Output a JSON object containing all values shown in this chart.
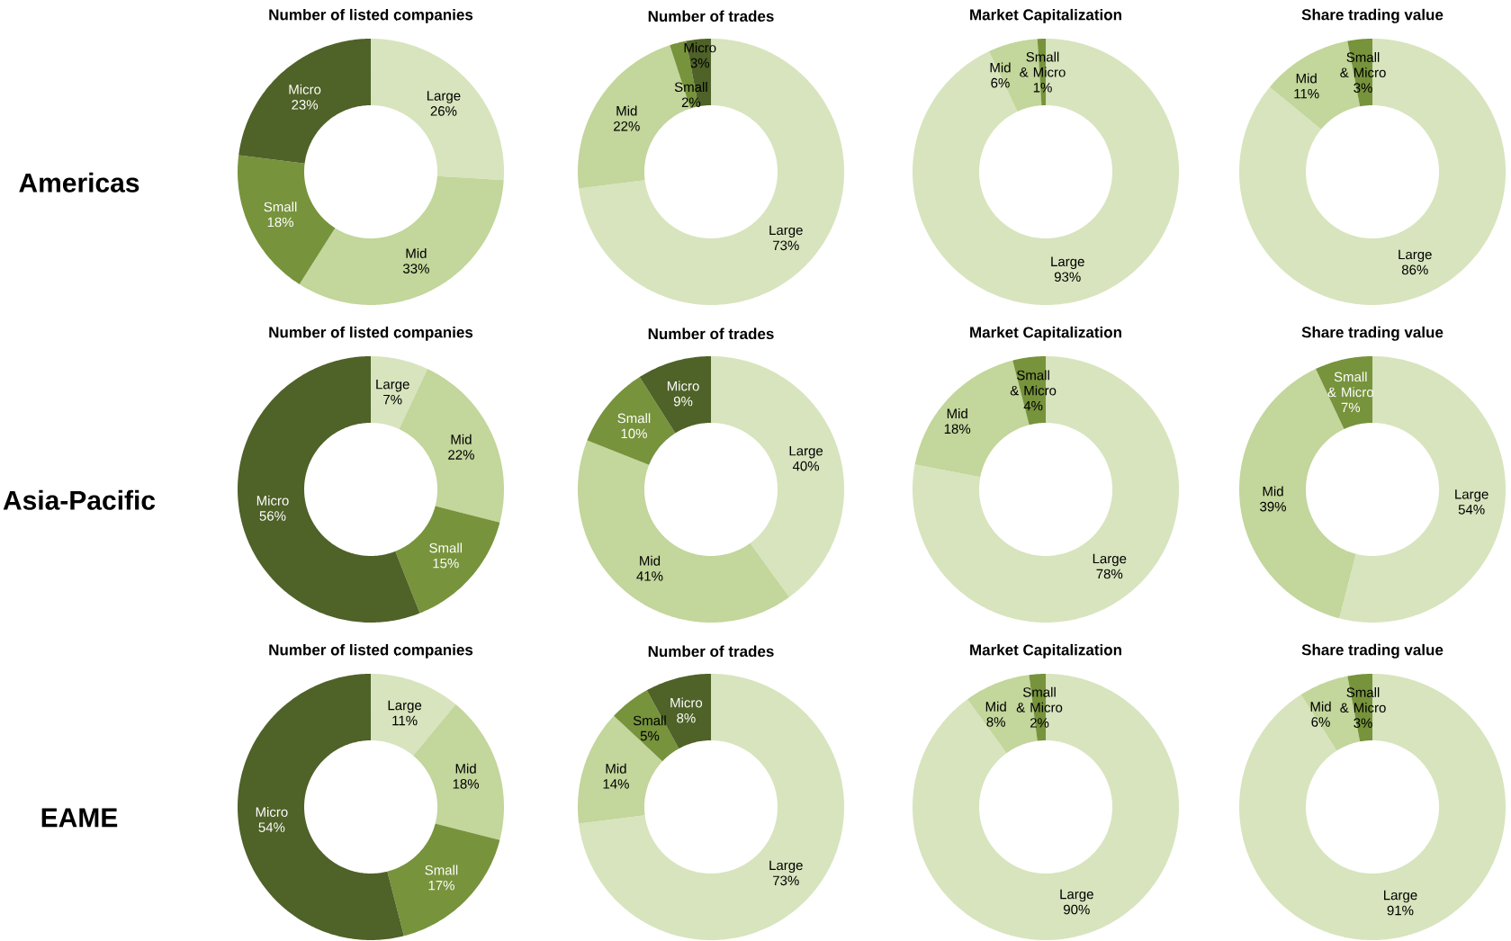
{
  "chart_data": [
    {
      "type": "donut",
      "title": "Number of listed companies",
      "annotations": [
        "Americas"
      ],
      "categories": [
        "Large",
        "Mid",
        "Small",
        "Micro"
      ],
      "values": [
        26,
        33,
        18,
        23
      ],
      "value_labels": [
        "26%",
        "33%",
        "18%",
        "23%"
      ],
      "colors": [
        "#d7e4bd",
        "#c3d69b",
        "#77933c",
        "#4f6228"
      ]
    },
    {
      "type": "donut",
      "title": "Number of trades",
      "categories": [
        "Large",
        "Mid",
        "Small",
        "Micro"
      ],
      "values": [
        73,
        22,
        2,
        3
      ],
      "value_labels": [
        "73%",
        "22%",
        "2%",
        "3%"
      ],
      "colors": [
        "#d7e4bd",
        "#c3d69b",
        "#77933c",
        "#4f6228"
      ]
    },
    {
      "type": "donut",
      "title": "Market Capitalization",
      "categories": [
        "Large",
        "Mid",
        "Small & Micro"
      ],
      "values": [
        93,
        6,
        1
      ],
      "value_labels": [
        "93%",
        "6%",
        "1%"
      ],
      "colors": [
        "#d7e4bd",
        "#c3d69b",
        "#77933c"
      ]
    },
    {
      "type": "donut",
      "title": "Share trading value",
      "categories": [
        "Large",
        "Mid",
        "Small & Micro"
      ],
      "values": [
        86,
        11,
        3
      ],
      "value_labels": [
        "86%",
        "11%",
        "3%"
      ],
      "colors": [
        "#d7e4bd",
        "#c3d69b",
        "#77933c"
      ]
    },
    {
      "type": "donut",
      "title": "Number of listed companies",
      "annotations": [
        "Asia-Pacific"
      ],
      "categories": [
        "Large",
        "Mid",
        "Small",
        "Micro"
      ],
      "values": [
        7,
        22,
        15,
        56
      ],
      "value_labels": [
        "7%",
        "22%",
        "15%",
        "56%"
      ],
      "colors": [
        "#d7e4bd",
        "#c3d69b",
        "#77933c",
        "#4f6228"
      ]
    },
    {
      "type": "donut",
      "title": "Number of trades",
      "categories": [
        "Large",
        "Mid",
        "Small",
        "Micro"
      ],
      "values": [
        40,
        41,
        10,
        9
      ],
      "value_labels": [
        "40%",
        "41%",
        "10%",
        "9%"
      ],
      "colors": [
        "#d7e4bd",
        "#c3d69b",
        "#77933c",
        "#4f6228"
      ]
    },
    {
      "type": "donut",
      "title": "Market Capitalization",
      "categories": [
        "Large",
        "Mid",
        "Small & Micro"
      ],
      "values": [
        78,
        18,
        4
      ],
      "value_labels": [
        "78%",
        "18%",
        "4%"
      ],
      "colors": [
        "#d7e4bd",
        "#c3d69b",
        "#77933c"
      ]
    },
    {
      "type": "donut",
      "title": "Share trading value",
      "categories": [
        "Large",
        "Mid",
        "Small & Micro"
      ],
      "values": [
        54,
        39,
        7
      ],
      "value_labels": [
        "54%",
        "39%",
        "7%"
      ],
      "colors": [
        "#d7e4bd",
        "#c3d69b",
        "#77933c"
      ]
    },
    {
      "type": "donut",
      "title": "Number of listed companies",
      "annotations": [
        "EAME"
      ],
      "categories": [
        "Large",
        "Mid",
        "Small",
        "Micro"
      ],
      "values": [
        11,
        18,
        17,
        54
      ],
      "value_labels": [
        "11%",
        "18%",
        "17%",
        "54%"
      ],
      "colors": [
        "#d7e4bd",
        "#c3d69b",
        "#77933c",
        "#4f6228"
      ]
    },
    {
      "type": "donut",
      "title": "Number of trades",
      "categories": [
        "Large",
        "Mid",
        "Small",
        "Micro"
      ],
      "values": [
        73,
        14,
        5,
        8
      ],
      "value_labels": [
        "73%",
        "14%",
        "5%",
        "8%"
      ],
      "colors": [
        "#d7e4bd",
        "#c3d69b",
        "#77933c",
        "#4f6228"
      ]
    },
    {
      "type": "donut",
      "title": "Market Capitalization",
      "categories": [
        "Large",
        "Mid",
        "Small & Micro"
      ],
      "values": [
        90,
        8,
        2
      ],
      "value_labels": [
        "90%",
        "8%",
        "2%"
      ],
      "colors": [
        "#d7e4bd",
        "#c3d69b",
        "#77933c"
      ]
    },
    {
      "type": "donut",
      "title": "Share trading value",
      "categories": [
        "Large",
        "Mid",
        "Small & Micro"
      ],
      "values": [
        91,
        6,
        3
      ],
      "value_labels": [
        "91%",
        "6%",
        "3%"
      ],
      "colors": [
        "#d7e4bd",
        "#c3d69b",
        "#77933c"
      ]
    }
  ]
}
